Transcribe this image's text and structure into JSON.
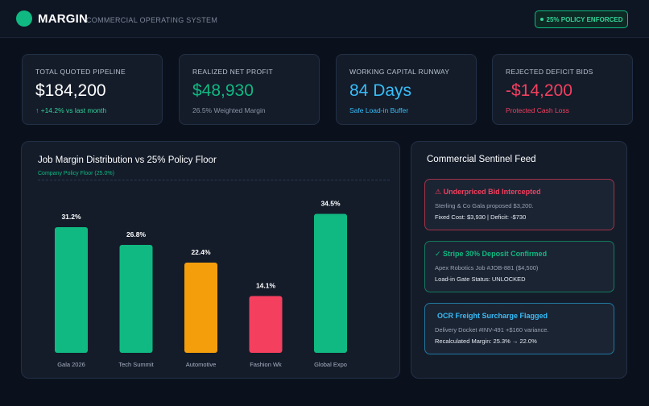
{
  "header": {
    "brand": "MARGIN",
    "subtitle": "COMMERCIAL OPERATING SYSTEM",
    "policy_badge": "25% POLICY ENFORCED"
  },
  "kpis": [
    {
      "label": "TOTAL QUOTED PIPELINE",
      "value": "$184,200",
      "sub": "↑ +14.2% vs last month",
      "value_color": "#ffffff",
      "sub_color": "#34d399"
    },
    {
      "label": "REALIZED NET PROFIT",
      "value": "$48,930",
      "sub": "26.5% Weighted Margin",
      "value_color": "#10b981",
      "sub_color": "#8a94a4"
    },
    {
      "label": "WORKING CAPITAL RUNWAY",
      "value": "84 Days",
      "sub": "Safe Load-in Buffer",
      "value_color": "#38bdf8",
      "sub_color": "#38bdf8"
    },
    {
      "label": "REJECTED DEFICIT BIDS",
      "value": "-$14,200",
      "sub": "Protected Cash Loss",
      "value_color": "#f43f5e",
      "sub_color": "#f43f5e"
    }
  ],
  "chart": {
    "title": "Job Margin Distribution vs 25% Policy Floor",
    "floor_label": "Company Policy Floor (25.0%)"
  },
  "chart_data": {
    "type": "bar",
    "title": "Job Margin Distribution vs 25% Policy Floor",
    "categories": [
      "Gala 2026",
      "Tech Summit",
      "Automotive",
      "Fashion Wk",
      "Global Expo"
    ],
    "values": [
      31.2,
      26.8,
      22.4,
      14.1,
      34.5
    ],
    "value_labels": [
      "31.2%",
      "26.8%",
      "22.4%",
      "14.1%",
      "34.5%"
    ],
    "colors": [
      "#10b981",
      "#10b981",
      "#f59e0b",
      "#f43f5e",
      "#10b981"
    ],
    "ylim": [
      0,
      35
    ],
    "policy_floor": 25.0,
    "grid": false,
    "xlabel": "",
    "ylabel": ""
  },
  "feed": {
    "title": "Commercial Sentinel Feed",
    "alerts": [
      {
        "title": "⚠ Underpriced Bid Intercepted",
        "line1": "Sterling & Co Gala proposed $3,200.",
        "line2": "Fixed Cost: $3,930 | Deficit: -$730",
        "color": "#f43f5e",
        "border": "#9f3347"
      },
      {
        "title": "✓ Stripe 30% Deposit Confirmed",
        "line1": "Apex Robotics Job #JOB-881 ($4,500)",
        "line2": "Load-in Gate Status: UNLOCKED",
        "color": "#10b981",
        "border": "#157a5c"
      },
      {
        "title": "OCR Freight Surcharge Flagged",
        "line1": "Delivery Docket #INV-491 +$160 variance.",
        "line2": "Recalculated Margin: 25.3% → 22.0%",
        "color": "#38bdf8",
        "border": "#2376a0"
      }
    ]
  }
}
